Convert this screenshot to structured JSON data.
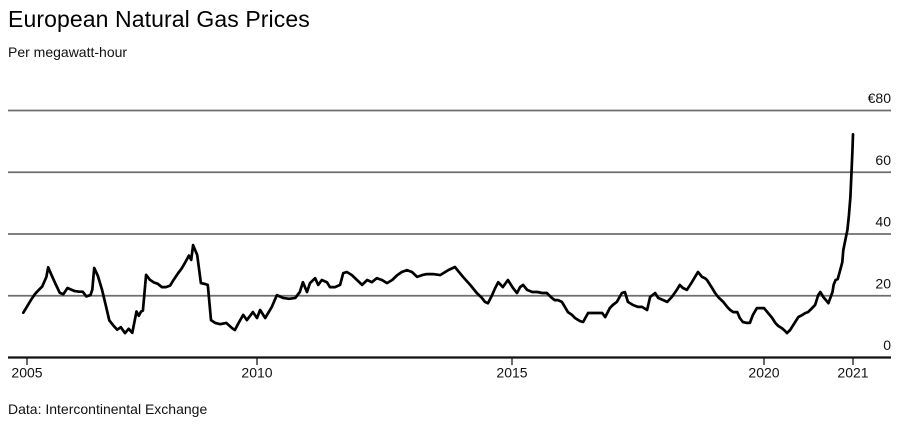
{
  "header": {
    "title": "European Natural Gas Prices",
    "subtitle": "Per megawatt-hour"
  },
  "footer": {
    "source": "Data: Intercontinental Exchange"
  },
  "colors": {
    "line": "#000000",
    "gridline": "#6e6e6e",
    "axis": "#111111",
    "text": "#111111",
    "background": "#ffffff"
  },
  "chart_data": {
    "type": "line",
    "title": "European Natural Gas Prices",
    "subtitle": "Per megawatt-hour",
    "source": "Data: Intercontinental Exchange",
    "currency": "EUR",
    "units": "EUR per megawatt-hour",
    "legend": "none",
    "grid": "horizontal",
    "ylim": [
      0,
      80
    ],
    "x_range_years": [
      2004.9,
      2021.75
    ],
    "yticks": [
      {
        "value": 80,
        "label": "€80"
      },
      {
        "value": 60,
        "label": "60"
      },
      {
        "value": 40,
        "label": "40"
      },
      {
        "value": 20,
        "label": "20"
      },
      {
        "value": 0,
        "label": "0"
      }
    ],
    "xticks": [
      {
        "year": 2005,
        "label": "2005"
      },
      {
        "year": 2010,
        "label": "2010"
      },
      {
        "year": 2015,
        "label": "2015"
      },
      {
        "year": 2020,
        "label": "2020"
      },
      {
        "year": 2021,
        "label": "2021"
      }
    ],
    "series": [
      {
        "name": "European natural gas price",
        "unit": "EUR/MWh",
        "points": [
          [
            2004.92,
            14.5
          ],
          [
            2005.0,
            16.5
          ],
          [
            2005.08,
            18.5
          ],
          [
            2005.17,
            20.5
          ],
          [
            2005.25,
            21.8
          ],
          [
            2005.33,
            23.0
          ],
          [
            2005.42,
            26.0
          ],
          [
            2005.46,
            29.2
          ],
          [
            2005.54,
            26.5
          ],
          [
            2005.63,
            23.5
          ],
          [
            2005.71,
            21.0
          ],
          [
            2005.79,
            20.5
          ],
          [
            2005.88,
            22.5
          ],
          [
            2005.96,
            22.0
          ],
          [
            2006.04,
            21.5
          ],
          [
            2006.13,
            21.3
          ],
          [
            2006.21,
            21.3
          ],
          [
            2006.29,
            19.8
          ],
          [
            2006.38,
            20.2
          ],
          [
            2006.42,
            22.0
          ],
          [
            2006.46,
            29.0
          ],
          [
            2006.54,
            26.5
          ],
          [
            2006.63,
            22.0
          ],
          [
            2006.71,
            17.0
          ],
          [
            2006.79,
            12.0
          ],
          [
            2006.88,
            10.3
          ],
          [
            2006.96,
            9.0
          ],
          [
            2007.04,
            9.8
          ],
          [
            2007.13,
            7.9
          ],
          [
            2007.21,
            9.3
          ],
          [
            2007.29,
            8.0
          ],
          [
            2007.38,
            14.9
          ],
          [
            2007.43,
            13.5
          ],
          [
            2007.48,
            14.9
          ],
          [
            2007.52,
            15.2
          ],
          [
            2007.59,
            26.8
          ],
          [
            2007.67,
            25.2
          ],
          [
            2007.76,
            24.3
          ],
          [
            2007.84,
            23.9
          ],
          [
            2007.93,
            22.8
          ],
          [
            2008.02,
            22.8
          ],
          [
            2008.11,
            23.3
          ],
          [
            2008.19,
            25.2
          ],
          [
            2008.28,
            27.2
          ],
          [
            2008.36,
            28.8
          ],
          [
            2008.44,
            30.8
          ],
          [
            2008.52,
            33.0
          ],
          [
            2008.57,
            31.6
          ],
          [
            2008.61,
            36.4
          ],
          [
            2008.7,
            33.2
          ],
          [
            2008.78,
            24.1
          ],
          [
            2008.87,
            23.8
          ],
          [
            2008.93,
            23.5
          ],
          [
            2009.0,
            12.1
          ],
          [
            2009.09,
            11.2
          ],
          [
            2009.2,
            10.8
          ],
          [
            2009.33,
            11.2
          ],
          [
            2009.46,
            9.5
          ],
          [
            2009.52,
            8.9
          ],
          [
            2009.61,
            11.5
          ],
          [
            2009.7,
            13.8
          ],
          [
            2009.78,
            12.1
          ],
          [
            2009.91,
            14.7
          ],
          [
            2010.0,
            12.8
          ],
          [
            2010.06,
            15.4
          ],
          [
            2010.16,
            12.8
          ],
          [
            2010.29,
            16.4
          ],
          [
            2010.39,
            20.2
          ],
          [
            2010.51,
            19.3
          ],
          [
            2010.63,
            19.0
          ],
          [
            2010.75,
            19.3
          ],
          [
            2010.84,
            21.2
          ],
          [
            2010.9,
            24.4
          ],
          [
            2010.98,
            21.2
          ],
          [
            2011.04,
            24.1
          ],
          [
            2011.14,
            25.7
          ],
          [
            2011.2,
            23.5
          ],
          [
            2011.27,
            25.1
          ],
          [
            2011.37,
            24.4
          ],
          [
            2011.43,
            22.8
          ],
          [
            2011.53,
            22.8
          ],
          [
            2011.63,
            23.5
          ],
          [
            2011.69,
            27.3
          ],
          [
            2011.76,
            27.7
          ],
          [
            2011.86,
            26.7
          ],
          [
            2011.96,
            25.1
          ],
          [
            2012.06,
            23.5
          ],
          [
            2012.16,
            25.1
          ],
          [
            2012.25,
            24.4
          ],
          [
            2012.35,
            25.7
          ],
          [
            2012.45,
            25.1
          ],
          [
            2012.55,
            24.1
          ],
          [
            2012.65,
            25.1
          ],
          [
            2012.75,
            26.7
          ],
          [
            2012.84,
            27.7
          ],
          [
            2012.94,
            28.3
          ],
          [
            2013.04,
            27.7
          ],
          [
            2013.14,
            26.1
          ],
          [
            2013.24,
            26.7
          ],
          [
            2013.33,
            27.0
          ],
          [
            2013.45,
            27.0
          ],
          [
            2013.59,
            26.7
          ],
          [
            2013.75,
            28.3
          ],
          [
            2013.88,
            29.3
          ],
          [
            2014.04,
            26.1
          ],
          [
            2014.18,
            23.5
          ],
          [
            2014.31,
            20.9
          ],
          [
            2014.41,
            19.3
          ],
          [
            2014.47,
            18.0
          ],
          [
            2014.53,
            17.6
          ],
          [
            2014.61,
            20.2
          ],
          [
            2014.67,
            22.5
          ],
          [
            2014.73,
            24.4
          ],
          [
            2014.82,
            22.8
          ],
          [
            2014.92,
            25.1
          ],
          [
            2015.02,
            22.5
          ],
          [
            2015.1,
            20.9
          ],
          [
            2015.16,
            22.8
          ],
          [
            2015.22,
            23.5
          ],
          [
            2015.3,
            21.9
          ],
          [
            2015.4,
            21.2
          ],
          [
            2015.5,
            21.2
          ],
          [
            2015.6,
            20.9
          ],
          [
            2015.69,
            20.9
          ],
          [
            2015.79,
            19.3
          ],
          [
            2015.85,
            18.6
          ],
          [
            2015.91,
            18.6
          ],
          [
            2015.99,
            18.0
          ],
          [
            2016.05,
            16.4
          ],
          [
            2016.11,
            14.7
          ],
          [
            2016.19,
            13.8
          ],
          [
            2016.25,
            12.8
          ],
          [
            2016.35,
            11.8
          ],
          [
            2016.41,
            11.5
          ],
          [
            2016.51,
            14.4
          ],
          [
            2016.61,
            14.4
          ],
          [
            2016.71,
            14.4
          ],
          [
            2016.79,
            14.4
          ],
          [
            2016.85,
            13.1
          ],
          [
            2016.94,
            16.0
          ],
          [
            2017.0,
            17.0
          ],
          [
            2017.08,
            18.0
          ],
          [
            2017.18,
            20.9
          ],
          [
            2017.24,
            21.2
          ],
          [
            2017.3,
            18.0
          ],
          [
            2017.4,
            17.0
          ],
          [
            2017.5,
            16.4
          ],
          [
            2017.58,
            16.4
          ],
          [
            2017.68,
            15.4
          ],
          [
            2017.74,
            19.6
          ],
          [
            2017.84,
            20.9
          ],
          [
            2017.9,
            19.3
          ],
          [
            2018.0,
            18.6
          ],
          [
            2018.08,
            18.0
          ],
          [
            2018.17,
            19.6
          ],
          [
            2018.27,
            21.9
          ],
          [
            2018.33,
            23.5
          ],
          [
            2018.39,
            22.5
          ],
          [
            2018.47,
            21.9
          ],
          [
            2018.57,
            24.4
          ],
          [
            2018.63,
            26.1
          ],
          [
            2018.69,
            27.7
          ],
          [
            2018.77,
            26.1
          ],
          [
            2018.83,
            25.7
          ],
          [
            2018.87,
            25.1
          ],
          [
            2018.97,
            22.5
          ],
          [
            2019.03,
            20.9
          ],
          [
            2019.09,
            19.6
          ],
          [
            2019.19,
            18.0
          ],
          [
            2019.27,
            16.4
          ],
          [
            2019.33,
            15.4
          ],
          [
            2019.39,
            14.7
          ],
          [
            2019.47,
            14.7
          ],
          [
            2019.52,
            12.8
          ],
          [
            2019.58,
            11.5
          ],
          [
            2019.66,
            11.2
          ],
          [
            2019.72,
            11.2
          ],
          [
            2019.78,
            13.8
          ],
          [
            2019.86,
            16.0
          ],
          [
            2019.92,
            16.0
          ],
          [
            2020.0,
            16.0
          ],
          [
            2020.08,
            14.4
          ],
          [
            2020.16,
            12.8
          ],
          [
            2020.22,
            11.2
          ],
          [
            2020.28,
            10.2
          ],
          [
            2020.35,
            9.5
          ],
          [
            2020.41,
            8.6
          ],
          [
            2020.45,
            7.9
          ],
          [
            2020.51,
            8.9
          ],
          [
            2020.55,
            9.9
          ],
          [
            2020.61,
            11.5
          ],
          [
            2020.67,
            13.1
          ],
          [
            2020.75,
            13.8
          ],
          [
            2020.81,
            14.4
          ],
          [
            2020.86,
            14.7
          ],
          [
            2020.94,
            16.0
          ],
          [
            2021.0,
            17.0
          ],
          [
            2021.06,
            20.2
          ],
          [
            2021.1,
            21.2
          ],
          [
            2021.16,
            19.6
          ],
          [
            2021.24,
            18.0
          ],
          [
            2021.26,
            17.6
          ],
          [
            2021.34,
            21.2
          ],
          [
            2021.36,
            23.5
          ],
          [
            2021.4,
            25.1
          ],
          [
            2021.44,
            25.4
          ],
          [
            2021.49,
            28.3
          ],
          [
            2021.53,
            30.9
          ],
          [
            2021.55,
            34.8
          ],
          [
            2021.59,
            38.0
          ],
          [
            2021.63,
            41.3
          ],
          [
            2021.66,
            46.0
          ],
          [
            2021.69,
            52.0
          ],
          [
            2021.71,
            60.0
          ],
          [
            2021.73,
            67.5
          ],
          [
            2021.74,
            72.3
          ]
        ]
      }
    ]
  }
}
